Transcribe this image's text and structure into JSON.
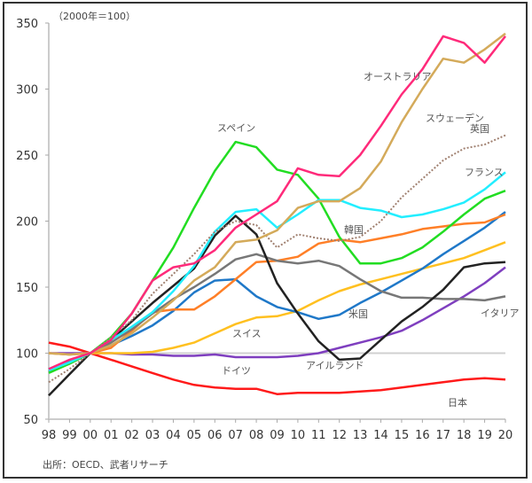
{
  "chart_data": {
    "type": "line",
    "unit_note": "（2000年＝100）",
    "source": "出所：OECD、武者リサーチ",
    "x": [
      "98",
      "99",
      "00",
      "01",
      "02",
      "03",
      "04",
      "05",
      "06",
      "07",
      "08",
      "09",
      "10",
      "11",
      "12",
      "13",
      "14",
      "15",
      "16",
      "17",
      "18",
      "19",
      "20"
    ],
    "ylim": [
      50,
      350
    ],
    "yticks": [
      50,
      100,
      150,
      200,
      250,
      300,
      350
    ],
    "grid": false,
    "reference_line": 100,
    "series": [
      {
        "name": "日本",
        "color": "#ff1a1a",
        "values": [
          108,
          105,
          100,
          95,
          90,
          85,
          80,
          76,
          74,
          73,
          73,
          69,
          70,
          70,
          70,
          71,
          72,
          74,
          76,
          78,
          80,
          81,
          80
        ]
      },
      {
        "name": "ドイツ",
        "color": "#7f3fbf",
        "values": [
          100,
          100,
          100,
          100,
          99,
          99,
          98,
          98,
          99,
          97,
          97,
          97,
          98,
          100,
          104,
          108,
          112,
          117,
          125,
          134,
          143,
          153,
          165
        ]
      },
      {
        "name": "スイス",
        "color": "#ffc020",
        "values": [
          100,
          99,
          100,
          100,
          100,
          101,
          104,
          108,
          115,
          122,
          127,
          128,
          132,
          140,
          147,
          152,
          156,
          160,
          164,
          168,
          172,
          178,
          184
        ]
      },
      {
        "name": "米国",
        "color": "#1f78c8",
        "values": [
          88,
          94,
          100,
          106,
          113,
          121,
          132,
          146,
          155,
          156,
          143,
          135,
          131,
          126,
          129,
          138,
          146,
          155,
          164,
          175,
          185,
          195,
          207
        ]
      },
      {
        "name": "韓国",
        "color": "#ff7f27",
        "values": [
          100,
          99,
          100,
          104,
          117,
          131,
          133,
          133,
          143,
          156,
          169,
          170,
          173,
          183,
          186,
          184,
          187,
          190,
          194,
          196,
          198,
          199,
          205
        ]
      },
      {
        "name": "イタリア",
        "color": "#777777",
        "values": [
          86,
          92,
          100,
          108,
          118,
          130,
          141,
          150,
          160,
          171,
          175,
          170,
          168,
          170,
          166,
          156,
          147,
          142,
          142,
          141,
          141,
          140,
          143
        ]
      },
      {
        "name": "アイルランド",
        "color": "#222222",
        "values": [
          68,
          84,
          100,
          110,
          124,
          138,
          151,
          164,
          189,
          204,
          190,
          153,
          130,
          109,
          95,
          96,
          110,
          124,
          135,
          148,
          165,
          168,
          169
        ]
      },
      {
        "name": "スペイン",
        "color": "#22dd22",
        "values": [
          85,
          92,
          100,
          112,
          130,
          155,
          180,
          210,
          238,
          260,
          256,
          239,
          235,
          217,
          188,
          168,
          168,
          172,
          180,
          192,
          205,
          217,
          223
        ]
      },
      {
        "name": "フランス",
        "color": "#22eeff",
        "values": [
          87,
          93,
          100,
          110,
          120,
          131,
          147,
          166,
          192,
          207,
          209,
          195,
          205,
          216,
          216,
          210,
          208,
          203,
          205,
          209,
          214,
          224,
          237
        ]
      },
      {
        "name": "英国",
        "color": "#a08070",
        "dashed": true,
        "values": [
          78,
          88,
          100,
          112,
          125,
          145,
          160,
          175,
          192,
          200,
          197,
          180,
          190,
          187,
          185,
          188,
          200,
          218,
          232,
          246,
          255,
          258,
          265
        ]
      },
      {
        "name": "スウェーデン",
        "color": "#d4aa5a",
        "values": [
          100,
          99,
          100,
          106,
          115,
          127,
          140,
          155,
          165,
          184,
          186,
          193,
          210,
          215,
          215,
          225,
          245,
          275,
          300,
          323,
          320,
          330,
          342
        ]
      },
      {
        "name": "オーストラリア",
        "color": "#ff2a7a",
        "values": [
          88,
          95,
          100,
          110,
          130,
          155,
          165,
          168,
          178,
          195,
          205,
          215,
          240,
          235,
          234,
          250,
          272,
          296,
          315,
          340,
          335,
          320,
          340
        ]
      }
    ]
  }
}
